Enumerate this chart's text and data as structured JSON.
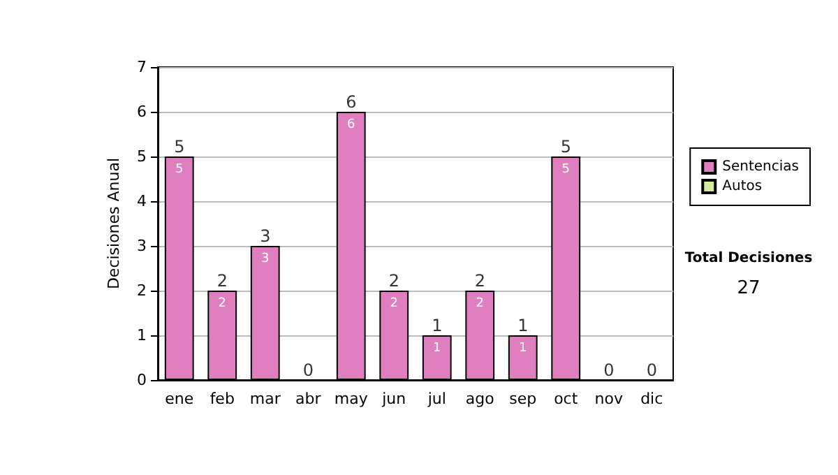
{
  "chart_data": {
    "type": "bar",
    "stacked": true,
    "ylabel": "Decisiones Anual",
    "categories": [
      "ene",
      "feb",
      "mar",
      "abr",
      "may",
      "jun",
      "jul",
      "ago",
      "sep",
      "oct",
      "nov",
      "dic"
    ],
    "series": [
      {
        "name": "Sentencias",
        "color": "#e07fc0",
        "values": [
          5,
          2,
          3,
          0,
          6,
          2,
          1,
          2,
          1,
          5,
          0,
          0
        ],
        "value_labels": [
          "5",
          "2",
          "3",
          null,
          "6",
          "2",
          "1",
          "2",
          "1",
          "5",
          null,
          null
        ]
      },
      {
        "name": "Autos",
        "color": "#d4ec9c",
        "values": [
          0,
          0,
          0,
          0,
          0,
          0,
          0,
          0,
          0,
          0,
          0,
          0
        ]
      }
    ],
    "totals": [
      "5",
      "2",
      "3",
      "0",
      "6",
      "2",
      "1",
      "2",
      "1",
      "5",
      "0",
      "0"
    ],
    "ylim": [
      0,
      7
    ],
    "yticks": [
      0,
      1,
      2,
      3,
      4,
      5,
      6,
      7
    ],
    "grid": "y",
    "legend": "right",
    "annotations": [
      "Total Decisiones",
      "27"
    ]
  }
}
